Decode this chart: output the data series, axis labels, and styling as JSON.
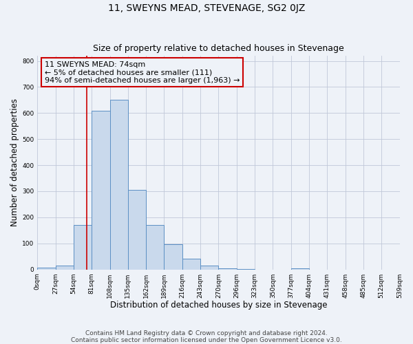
{
  "title": "11, SWEYNS MEAD, STEVENAGE, SG2 0JZ",
  "subtitle": "Size of property relative to detached houses in Stevenage",
  "xlabel": "Distribution of detached houses by size in Stevenage",
  "ylabel": "Number of detached properties",
  "bin_edges": [
    0,
    27,
    54,
    81,
    108,
    135,
    162,
    189,
    216,
    243,
    270,
    297,
    324,
    351,
    378,
    405,
    432,
    459,
    486,
    513,
    540
  ],
  "bin_labels": [
    "0sqm",
    "27sqm",
    "54sqm",
    "81sqm",
    "108sqm",
    "135sqm",
    "162sqm",
    "189sqm",
    "216sqm",
    "243sqm",
    "270sqm",
    "296sqm",
    "323sqm",
    "350sqm",
    "377sqm",
    "404sqm",
    "431sqm",
    "458sqm",
    "485sqm",
    "512sqm",
    "539sqm"
  ],
  "counts": [
    8,
    15,
    170,
    610,
    650,
    305,
    170,
    97,
    42,
    15,
    5,
    2,
    0,
    0,
    5,
    0,
    0,
    0,
    0,
    0
  ],
  "bar_facecolor": "#c9d9ec",
  "bar_edgecolor": "#5b8fc4",
  "grid_color": "#c0c8d8",
  "vline_x": 74,
  "vline_color": "#cc0000",
  "annotation_title": "11 SWEYNS MEAD: 74sqm",
  "annotation_line1": "← 5% of detached houses are smaller (111)",
  "annotation_line2": "94% of semi-detached houses are larger (1,963) →",
  "annotation_box_edgecolor": "#cc0000",
  "ylim": [
    0,
    820
  ],
  "yticks": [
    0,
    100,
    200,
    300,
    400,
    500,
    600,
    700,
    800
  ],
  "footer_line1": "Contains HM Land Registry data © Crown copyright and database right 2024.",
  "footer_line2": "Contains public sector information licensed under the Open Government Licence v3.0.",
  "background_color": "#eef2f8",
  "title_fontsize": 10,
  "subtitle_fontsize": 9,
  "axis_label_fontsize": 8.5,
  "tick_fontsize": 6.5,
  "footer_fontsize": 6.5,
  "annotation_fontsize": 8
}
